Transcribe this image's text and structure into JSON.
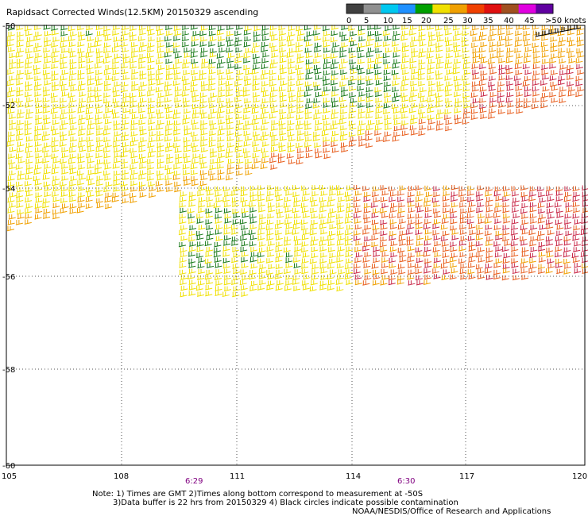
{
  "title": "Rapidsact Corrected Winds(12.5KM) 20150329 ascending",
  "legend": {
    "labels": [
      "0",
      "5",
      "10",
      "15",
      "20",
      "25",
      "30",
      "35",
      "40",
      "45",
      ">50 knots"
    ],
    "colors": [
      "#404040",
      "#909090",
      "#00c8f0",
      "#1e90ff",
      "#00a000",
      "#f0e000",
      "#f0a000",
      "#f04000",
      "#e01010",
      "#a05020",
      "#e000e0",
      "#6000a0"
    ]
  },
  "map": {
    "lat_labels": [
      "-50",
      "-52",
      "-54",
      "-56",
      "-58",
      "-60"
    ],
    "lon_labels": [
      "105",
      "108",
      "111",
      "114",
      "117",
      "120"
    ],
    "time_labels": [
      "6:29",
      "6:30"
    ],
    "background": "#ffffff",
    "grid_color": "#555555"
  },
  "notes": {
    "line1": "Note: 1) Times are GMT 2)Times along bottom correspond to measurement at -50S",
    "line2": "3)Data buffer is 22 hrs from 20150329 4) Black circles indicate possible contamination",
    "credit": "NOAA/NESDIS/Office of Research and Applications"
  },
  "wind_colors": {
    "green": "#1a7a1a",
    "yellow": "#f0e000",
    "orange": "#f0a000",
    "red_orange": "#e86020",
    "crimson": "#c82848",
    "black": "#000000"
  }
}
